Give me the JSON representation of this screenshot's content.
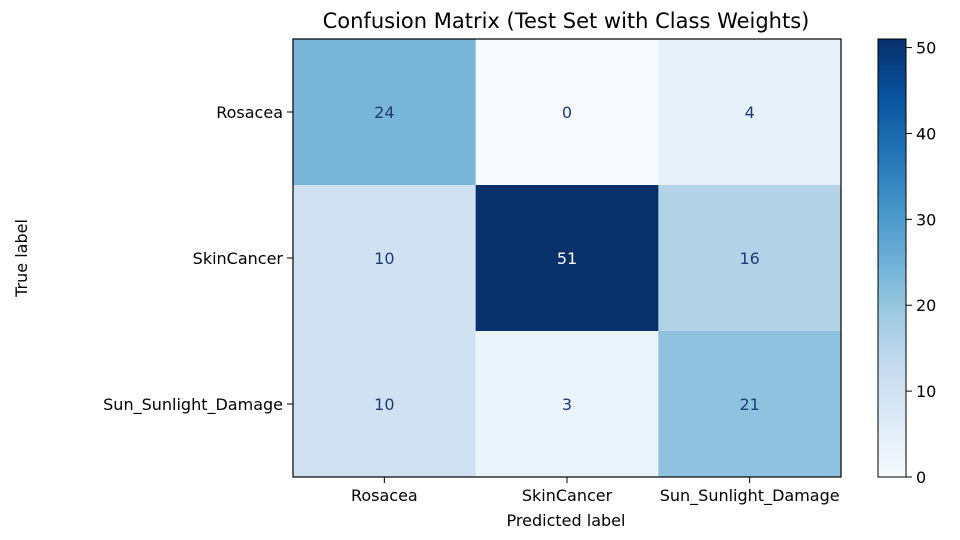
{
  "chart_data": {
    "type": "heatmap",
    "title": "Confusion Matrix (Test Set with Class Weights)",
    "xlabel": "Predicted label",
    "ylabel": "True label",
    "x_categories": [
      "Rosacea",
      "SkinCancer",
      "Sun_Sunlight_Damage"
    ],
    "y_categories": [
      "Rosacea",
      "SkinCancer",
      "Sun_Sunlight_Damage"
    ],
    "values": [
      [
        24,
        0,
        4
      ],
      [
        10,
        51,
        16
      ],
      [
        10,
        3,
        21
      ]
    ],
    "colormap": "Blues",
    "colorbar": {
      "range": [
        0,
        51
      ],
      "ticks": [
        0,
        10,
        20,
        30,
        40,
        50
      ]
    },
    "colors": {
      "low": "#f7fbff",
      "high": "#08306b",
      "dark_text": "#1f3b73",
      "light_text": "#ffffff"
    }
  }
}
